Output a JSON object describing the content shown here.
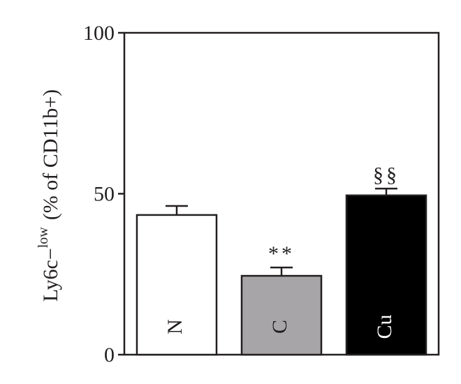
{
  "chart_data": {
    "type": "bar",
    "y_label": {
      "main": "Ly6c−",
      "superscript": "low",
      "suffix": "(% of CD11b+)"
    },
    "categories": [
      "N",
      "C",
      "Cu"
    ],
    "values": [
      43.4,
      24.5,
      49.5
    ],
    "errors": [
      2.8,
      2.6,
      2.1
    ],
    "colors": [
      "#ffffff",
      "#a7a5a8",
      "#000000"
    ],
    "annotations": [
      null,
      "**",
      "§§"
    ],
    "ylim": [
      0,
      100
    ],
    "yticks": [
      0,
      50,
      100
    ]
  }
}
